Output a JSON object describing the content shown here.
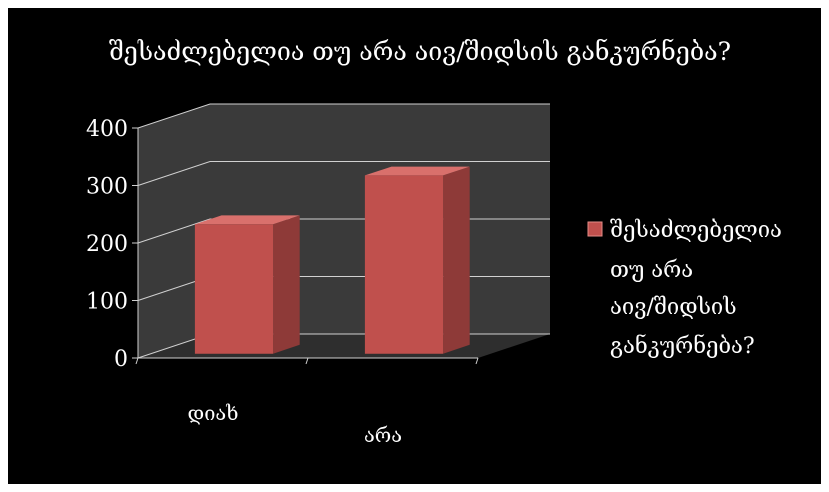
{
  "chart_data": {
    "type": "bar",
    "title": "შესაძლებელია თუ არა აივ/შიდსის განკურნება?",
    "categories": [
      "დიახ",
      "არა"
    ],
    "series": [
      {
        "name": "შესაძლებელია თუ არა აივ/შიდსის განკურნება?",
        "values": [
          225,
          310
        ],
        "color": "#c0504d"
      }
    ],
    "y_ticks": [
      "0",
      "100",
      "200",
      "300",
      "400"
    ],
    "ylim": [
      0,
      400
    ],
    "grid": true,
    "legend": {
      "position": "right",
      "lines": [
        "შესაძლებელია",
        "თუ არა",
        "აივ/შიდსის",
        "განკურნება?"
      ]
    },
    "style": {
      "background": "#000000",
      "text_color": "#ffffff",
      "wall_color": "#3a3a3a",
      "floor_color": "#2e2e2e",
      "grid_color": "#d0d0d0"
    }
  }
}
